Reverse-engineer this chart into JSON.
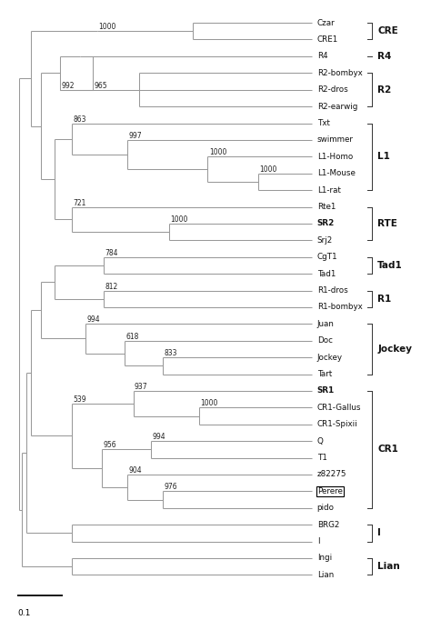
{
  "figsize": [
    4.74,
    6.82
  ],
  "dpi": 100,
  "taxa": [
    "Czar",
    "CRE1",
    "R4",
    "R2-bombyx",
    "R2-dros",
    "R2-earwig",
    "Txt",
    "swimmer",
    "L1-Homo",
    "L1-Mouse",
    "L1-rat",
    "Rte1",
    "SR2",
    "Srj2",
    "CgT1",
    "Tad1",
    "R1-dros",
    "R1-bombyx",
    "Juan",
    "Doc",
    "Jockey",
    "Tart",
    "SR1",
    "CR1-Gallus",
    "CR1-Spixii",
    "Q",
    "T1",
    "z82275",
    "Perere",
    "pido",
    "BRG2",
    "I",
    "Ingi",
    "Lian"
  ],
  "bold_taxa": [
    "SR2",
    "SR1"
  ],
  "boxed_taxa": [
    "Perere"
  ],
  "clade_brackets": [
    {
      "label": "CRE",
      "top": "Czar",
      "bot": "CRE1"
    },
    {
      "label": "R4",
      "top": "R4",
      "bot": "R4"
    },
    {
      "label": "R2",
      "top": "R2-bombyx",
      "bot": "R2-earwig"
    },
    {
      "label": "L1",
      "top": "Txt",
      "bot": "L1-rat"
    },
    {
      "label": "RTE",
      "top": "Rte1",
      "bot": "Srj2"
    },
    {
      "label": "Tad1",
      "top": "CgT1",
      "bot": "Tad1"
    },
    {
      "label": "R1",
      "top": "R1-dros",
      "bot": "R1-bombyx"
    },
    {
      "label": "Jockey",
      "top": "Juan",
      "bot": "Tart"
    },
    {
      "label": "CR1",
      "top": "SR1",
      "bot": "pido"
    },
    {
      "label": "I",
      "top": "BRG2",
      "bot": "I"
    },
    {
      "label": "Lian",
      "top": "Ingi",
      "bot": "Lian"
    }
  ]
}
